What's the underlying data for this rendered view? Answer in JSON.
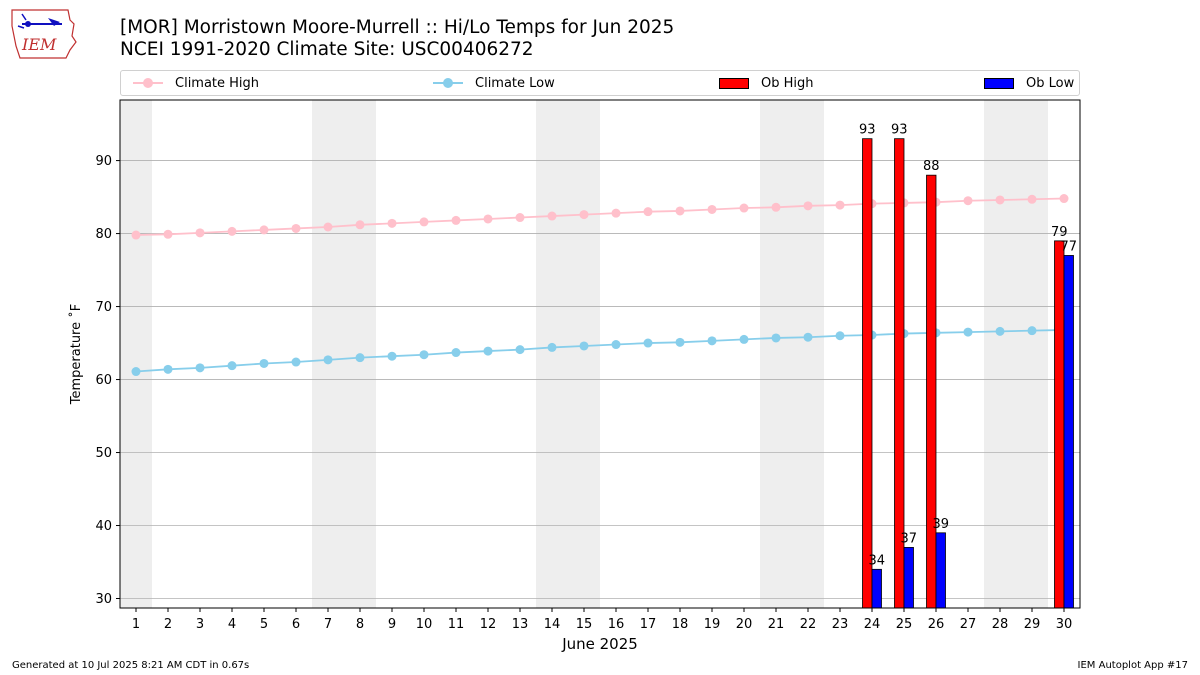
{
  "header": {
    "logo_text": "IEM",
    "title_line1": "[MOR] Morristown Moore-Murrell :: Hi/Lo Temps for Jun 2025",
    "title_line2": "NCEI 1991-2020 Climate Site: USC00406272"
  },
  "legend": {
    "climate_high": "Climate High",
    "climate_low": "Climate Low",
    "ob_high": "Ob High",
    "ob_low": "Ob Low"
  },
  "footer": {
    "generated": "Generated at 10 Jul 2025 8:21 AM CDT in 0.67s",
    "app": "IEM Autoplot App #17"
  },
  "colors": {
    "climate_high": "#ffc0cb",
    "climate_low": "#87ceeb",
    "ob_high": "#ff0000",
    "ob_low": "#0000ff",
    "weekend": "#eeeeee",
    "grid": "#b0b0b0"
  },
  "chart_data": {
    "type": "bar",
    "xlabel": "June 2025",
    "ylabel": "Temperature ˚F",
    "xlim": [
      0.5,
      30.5
    ],
    "ylim": [
      28.7,
      98.3
    ],
    "yticks": [
      30,
      40,
      50,
      60,
      70,
      80,
      90
    ],
    "days": [
      1,
      2,
      3,
      4,
      5,
      6,
      7,
      8,
      9,
      10,
      11,
      12,
      13,
      14,
      15,
      16,
      17,
      18,
      19,
      20,
      21,
      22,
      23,
      24,
      25,
      26,
      27,
      28,
      29,
      30
    ],
    "weekend_spans": [
      [
        0.5,
        1.5
      ],
      [
        6.5,
        8.5
      ],
      [
        13.5,
        15.5
      ],
      [
        20.5,
        22.5
      ],
      [
        27.5,
        29.5
      ]
    ],
    "series": [
      {
        "name": "Climate High",
        "type": "line",
        "values": [
          79.8,
          79.9,
          80.1,
          80.3,
          80.5,
          80.7,
          80.9,
          81.2,
          81.4,
          81.6,
          81.8,
          82.0,
          82.2,
          82.4,
          82.6,
          82.8,
          83.0,
          83.1,
          83.3,
          83.5,
          83.6,
          83.8,
          83.9,
          84.1,
          84.2,
          84.3,
          84.5,
          84.6,
          84.7,
          84.8
        ]
      },
      {
        "name": "Climate Low",
        "type": "line",
        "values": [
          61.1,
          61.4,
          61.6,
          61.9,
          62.2,
          62.4,
          62.7,
          63.0,
          63.2,
          63.4,
          63.7,
          63.9,
          64.1,
          64.4,
          64.6,
          64.8,
          65.0,
          65.1,
          65.3,
          65.5,
          65.7,
          65.8,
          66.0,
          66.1,
          66.3,
          66.4,
          66.5,
          66.6,
          66.7,
          66.8
        ]
      },
      {
        "name": "Ob High",
        "type": "bar",
        "points": [
          {
            "day": 24,
            "value": 93
          },
          {
            "day": 25,
            "value": 93
          },
          {
            "day": 26,
            "value": 88
          },
          {
            "day": 30,
            "value": 79
          }
        ]
      },
      {
        "name": "Ob Low",
        "type": "bar",
        "points": [
          {
            "day": 24,
            "value": 34
          },
          {
            "day": 25,
            "value": 37
          },
          {
            "day": 26,
            "value": 39
          },
          {
            "day": 30,
            "value": 77
          }
        ]
      }
    ]
  }
}
